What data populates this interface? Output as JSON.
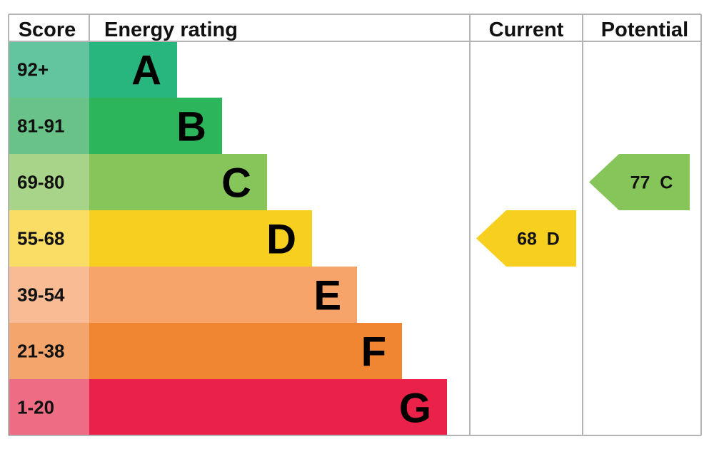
{
  "headers": {
    "score": "Score",
    "energy_rating": "Energy rating",
    "current": "Current",
    "potential": "Potential"
  },
  "chart_data": {
    "type": "bar",
    "bands": [
      {
        "letter": "A",
        "range": "92+",
        "min": 92,
        "max": 100,
        "color": "#28b57e",
        "score_bg": "#63c59f"
      },
      {
        "letter": "B",
        "range": "81-91",
        "min": 81,
        "max": 91,
        "color": "#2cb55a",
        "score_bg": "#69c388"
      },
      {
        "letter": "C",
        "range": "69-80",
        "min": 69,
        "max": 80,
        "color": "#86c55a",
        "score_bg": "#a8d48a"
      },
      {
        "letter": "D",
        "range": "55-68",
        "min": 55,
        "max": 68,
        "color": "#f7cf1e",
        "score_bg": "#f9dd65"
      },
      {
        "letter": "E",
        "range": "39-54",
        "min": 39,
        "max": 54,
        "color": "#f6a46a",
        "score_bg": "#f8bb93"
      },
      {
        "letter": "F",
        "range": "21-38",
        "min": 21,
        "max": 38,
        "color": "#f08532",
        "score_bg": "#f3a56c"
      },
      {
        "letter": "G",
        "range": "1-20",
        "min": 1,
        "max": 20,
        "color": "#ea2148",
        "score_bg": "#ef6c85"
      }
    ],
    "current": {
      "value": 68,
      "band": "D",
      "label": "68  D",
      "color": "#f7cf1e"
    },
    "potential": {
      "value": 77,
      "band": "C",
      "label": "77  C",
      "color": "#86c55a"
    }
  }
}
